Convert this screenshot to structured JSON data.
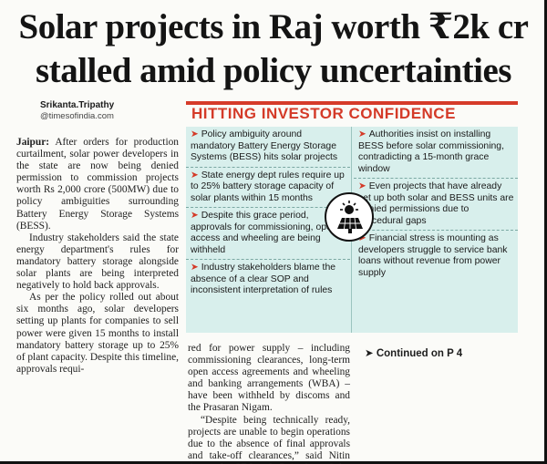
{
  "headline": {
    "line1": "Solar projects in Raj worth ₹2k cr",
    "line2": "stalled amid policy uncertainties"
  },
  "byline": {
    "name": "Srikanta.Tripathy",
    "handle": "@timesofindia.com"
  },
  "article": {
    "dateline": "Jaipur:",
    "p1": "After orders for production curtailment, solar power developers in the state are now being denied permission to commission projects worth Rs 2,000 crore (500MW) due to policy ambiguities surrounding Battery Energy Storage Systems (BESS).",
    "p2": "Industry stakeholders said the state energy department's rules for mandatory battery storage alongside solar plants are being interpreted negatively to hold back approvals.",
    "p3": "As per the policy rolled out about six months ago, solar developers setting up plants for companies to sell power were given 15 months to install mandatory battery storage up to 25% of plant capacity. Despite this timeline, approvals requi-",
    "p4": "red for power supply – including commissioning clearances, long-term open access agreements and wheeling and banking arrangements (WBA) – have been withheld by discoms and the Prasaran Nigam.",
    "p5": "“Despite being technically ready, projects are unable to begin operations due to the absence of final approvals and take-off clearances,” said Nitin Agarwal, CEO of Rajasthan Solar Association (RSA).",
    "continued": "Continued on P 4"
  },
  "factbox": {
    "title": "HITTING INVESTOR CONFIDENCE",
    "arrow_glyph": "➤",
    "left_items": [
      "Policy ambiguity around mandatory Battery Energy Storage Systems (BESS) hits solar projects",
      "State energy dept rules require up to 25% battery storage capacity of solar plants within 15 months",
      "Despite this grace period, approvals for commissioning, open access and wheeling are being withheld",
      "Industry stakeholders blame the absence of a clear SOP and inconsistent interpretation of rules"
    ],
    "right_items": [
      "Authorities insist on installing BESS before solar commissioning, contradicting a 15-month grace window",
      "Even projects that have already set up both solar and BESS units are denied permissions due to procedural gaps",
      "Financial stress is mounting as developers struggle to service bank loans without revenue from power supply"
    ],
    "icon": "solar-panel-sun-icon",
    "colors": {
      "accent": "#d43a28",
      "box_bg": "#d8efec"
    }
  }
}
